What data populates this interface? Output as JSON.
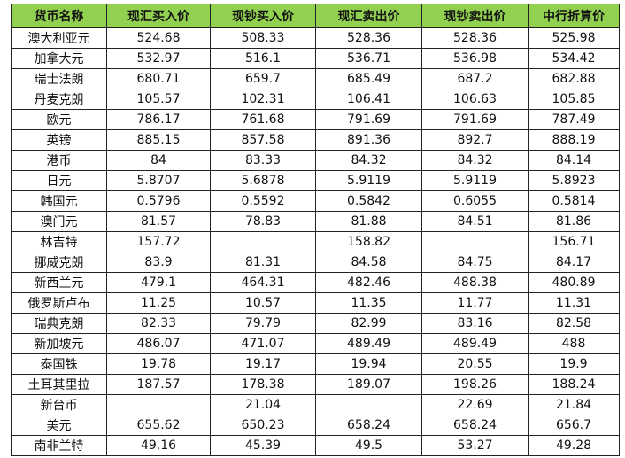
{
  "headers": [
    "货币名称",
    "现汇买入价",
    "现钞买入价",
    "现汇卖出价",
    "现钞卖出价",
    "中行折算价"
  ],
  "rows": [
    [
      "澳大利亚元",
      "524.68",
      "508.33",
      "528.36",
      "528.36",
      "525.98"
    ],
    [
      "加拿大元",
      "532.97",
      "516.1",
      "536.71",
      "536.98",
      "534.42"
    ],
    [
      "瑞士法朗",
      "680.71",
      "659.7",
      "685.49",
      "687.2",
      "682.88"
    ],
    [
      "丹麦克朗",
      "105.57",
      "102.31",
      "106.41",
      "106.63",
      "105.85"
    ],
    [
      "欧元",
      "786.17",
      "761.68",
      "791.69",
      "791.69",
      "787.49"
    ],
    [
      "英镑",
      "885.15",
      "857.58",
      "891.36",
      "892.7",
      "888.19"
    ],
    [
      "港币",
      "84",
      "83.33",
      "84.32",
      "84.32",
      "84.14"
    ],
    [
      "日元",
      "5.8707",
      "5.6878",
      "5.9119",
      "5.9119",
      "5.8923"
    ],
    [
      "韩国元",
      "0.5796",
      "0.5592",
      "0.5842",
      "0.6055",
      "0.5814"
    ],
    [
      "澳门元",
      "81.57",
      "78.83",
      "81.88",
      "84.51",
      "81.86"
    ],
    [
      "林吉特",
      "157.72",
      "",
      "158.82",
      "",
      "156.71"
    ],
    [
      "挪威克朗",
      "83.9",
      "81.31",
      "84.58",
      "84.75",
      "84.17"
    ],
    [
      "新西兰元",
      "479.1",
      "464.31",
      "482.46",
      "488.38",
      "480.89"
    ],
    [
      "俄罗斯卢布",
      "11.25",
      "10.57",
      "11.35",
      "11.77",
      "11.31"
    ],
    [
      "瑞典克朗",
      "82.33",
      "79.79",
      "82.99",
      "83.16",
      "82.58"
    ],
    [
      "新加坡元",
      "486.07",
      "471.07",
      "489.49",
      "489.49",
      "488"
    ],
    [
      "泰国铢",
      "19.78",
      "19.17",
      "19.94",
      "20.55",
      "19.9"
    ],
    [
      "土耳其里拉",
      "187.57",
      "178.38",
      "189.07",
      "198.26",
      "188.24"
    ],
    [
      "新台币",
      "",
      "21.04",
      "",
      "22.69",
      "21.84"
    ],
    [
      "美元",
      "655.62",
      "650.23",
      "658.24",
      "658.24",
      "656.7"
    ],
    [
      "南非兰特",
      "49.16",
      "45.39",
      "49.5",
      "53.27",
      "49.28"
    ]
  ],
  "colors": {
    "header_bg": "#92d050",
    "border": "#222222"
  }
}
